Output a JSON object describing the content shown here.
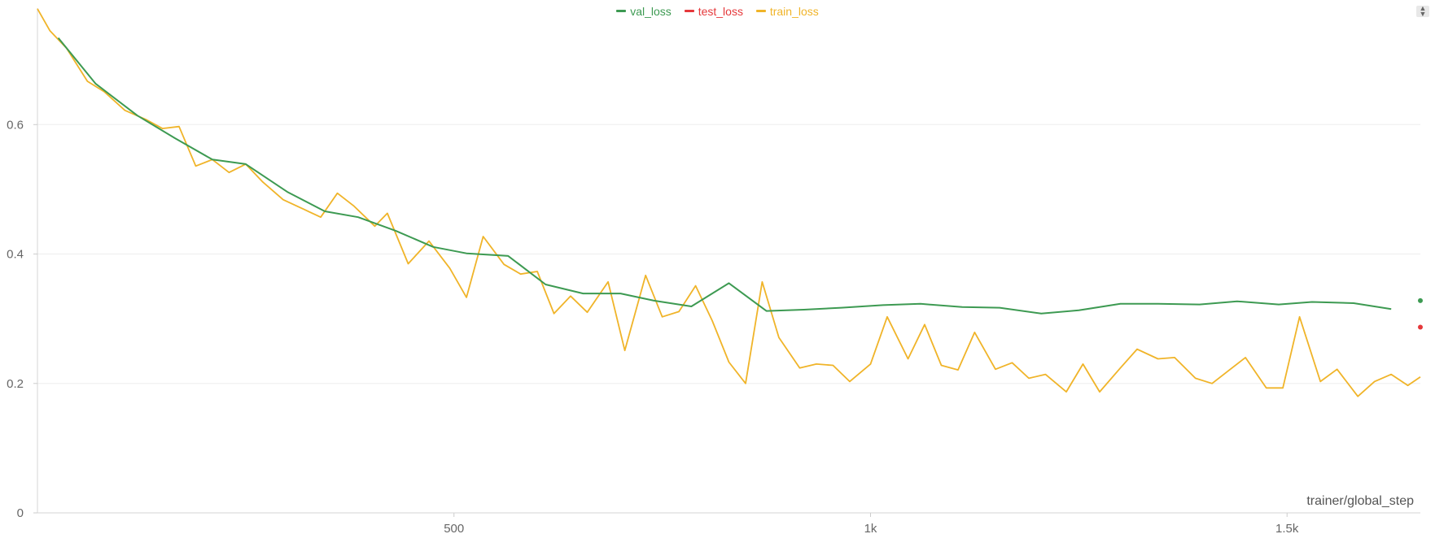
{
  "chart_data": {
    "type": "line",
    "xlabel": "trainer/global_step",
    "ylabel": "",
    "xlim": [
      0,
      1660
    ],
    "ylim": [
      0,
      0.78
    ],
    "xticks": [
      500,
      1000,
      1500
    ],
    "xtick_labels": [
      "500",
      "1k",
      "1.5k"
    ],
    "yticks": [
      0,
      0.2,
      0.4,
      0.6
    ],
    "ytick_labels": [
      "0",
      "0.2",
      "0.4",
      "0.6"
    ],
    "grid": true,
    "legend": "top-center",
    "series": [
      {
        "name": "val_loss",
        "color": "#3d9a52",
        "x": [
          25,
          70,
          120,
          165,
          210,
          250,
          300,
          345,
          385,
          430,
          475,
          515,
          565,
          610,
          655,
          700,
          740,
          785,
          830,
          875,
          920,
          965,
          1015,
          1060,
          1110,
          1155,
          1205,
          1250,
          1300,
          1345,
          1395,
          1440,
          1490,
          1530,
          1580,
          1625
        ],
        "y": [
          0.734,
          0.663,
          0.614,
          0.579,
          0.546,
          0.539,
          0.496,
          0.466,
          0.457,
          0.436,
          0.411,
          0.401,
          0.397,
          0.353,
          0.339,
          0.339,
          0.328,
          0.319,
          0.355,
          0.312,
          0.314,
          0.317,
          0.321,
          0.323,
          0.318,
          0.317,
          0.308,
          0.313,
          0.323,
          0.323,
          0.322,
          0.327,
          0.322,
          0.326,
          0.324,
          0.315
        ],
        "last": [
          1660,
          0.328
        ]
      },
      {
        "name": "test_loss",
        "color": "#e5383b",
        "x": [],
        "y": [],
        "last": [
          1660,
          0.287
        ]
      },
      {
        "name": "train_loss",
        "color": "#f0b429",
        "x": [
          0,
          15,
          35,
          60,
          80,
          105,
          130,
          150,
          170,
          190,
          210,
          230,
          250,
          270,
          295,
          320,
          340,
          360,
          380,
          405,
          420,
          445,
          470,
          495,
          515,
          535,
          560,
          580,
          600,
          620,
          640,
          660,
          685,
          705,
          730,
          750,
          770,
          790,
          810,
          830,
          850,
          870,
          890,
          915,
          935,
          955,
          975,
          1000,
          1020,
          1045,
          1065,
          1085,
          1105,
          1125,
          1150,
          1170,
          1190,
          1210,
          1235,
          1255,
          1275,
          1300,
          1320,
          1345,
          1365,
          1390,
          1410,
          1430,
          1450,
          1475,
          1495,
          1515,
          1540,
          1560,
          1585,
          1605,
          1625,
          1645,
          1660
        ],
        "y": [
          0.779,
          0.745,
          0.718,
          0.667,
          0.651,
          0.622,
          0.608,
          0.594,
          0.597,
          0.536,
          0.546,
          0.526,
          0.539,
          0.512,
          0.484,
          0.469,
          0.457,
          0.494,
          0.474,
          0.443,
          0.463,
          0.385,
          0.42,
          0.378,
          0.333,
          0.427,
          0.384,
          0.369,
          0.373,
          0.308,
          0.335,
          0.31,
          0.357,
          0.251,
          0.367,
          0.303,
          0.311,
          0.351,
          0.297,
          0.233,
          0.2,
          0.357,
          0.271,
          0.224,
          0.23,
          0.228,
          0.203,
          0.23,
          0.303,
          0.238,
          0.291,
          0.228,
          0.221,
          0.279,
          0.222,
          0.232,
          0.208,
          0.214,
          0.187,
          0.23,
          0.187,
          0.224,
          0.253,
          0.238,
          0.24,
          0.208,
          0.2,
          0.22,
          0.24,
          0.193,
          0.193,
          0.303,
          0.203,
          0.222,
          0.18,
          0.203,
          0.214,
          0.197,
          0.21
        ]
      }
    ]
  },
  "ui": {
    "menu_glyph_up": "▲",
    "menu_glyph_down": "▼"
  }
}
